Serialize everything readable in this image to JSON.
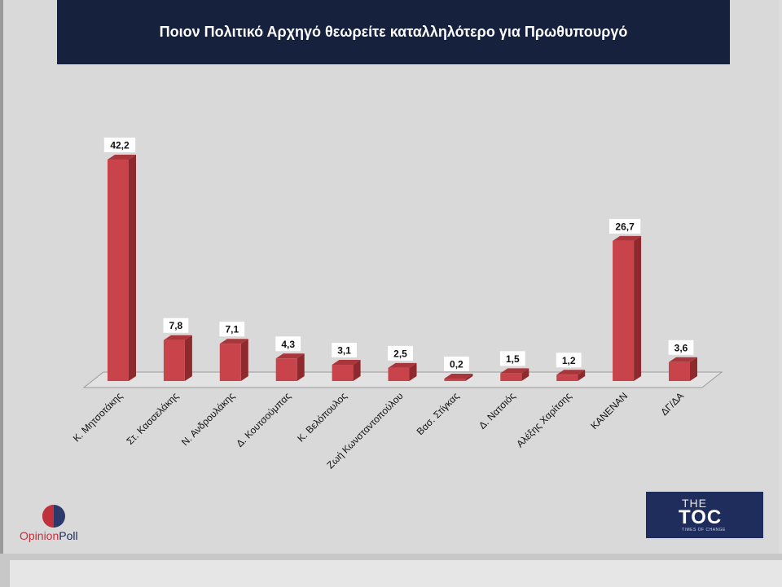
{
  "title": "Ποιον Πολιτικό Αρχηγό θεωρείτε καταλληλότερο για Πρωθυπουργό",
  "chart_data": {
    "type": "bar",
    "title": "Ποιον Πολιτικό Αρχηγό θεωρείτε καταλληλότερο για Πρωθυπουργό",
    "categories": [
      "Κ. Μητσοτάκης",
      "Στ. Κασσελάκης",
      "Ν. Ανδρουλάκης",
      "Δ. Κουτσούμπας",
      "Κ. Βελόπουλος",
      "Ζωή Κωνσταντοπούλου",
      "Βασ. Στίγκας",
      "Δ. Νατσιός",
      "Αλέξης Χαρίτσης",
      "ΚΑΝΕΝΑΝ",
      "ΔΓ/ΔΑ"
    ],
    "values": [
      42.2,
      7.8,
      7.1,
      4.3,
      3.1,
      2.5,
      0.2,
      1.5,
      1.2,
      26.7,
      3.6
    ],
    "value_labels": [
      "42,2",
      "7,8",
      "7,1",
      "4,3",
      "3,1",
      "2,5",
      "0,2",
      "1,5",
      "1,2",
      "26,7",
      "3,6"
    ],
    "xlabel": "",
    "ylabel": "",
    "ylim": [
      0,
      45
    ],
    "grid": false,
    "bar_color": "#c9444a"
  },
  "logos": {
    "left_opinion": "Opinion",
    "left_poll": "Poll",
    "right_the": "THE",
    "right_big": "TOC",
    "right_small": "TIMES OF CHANGE"
  }
}
